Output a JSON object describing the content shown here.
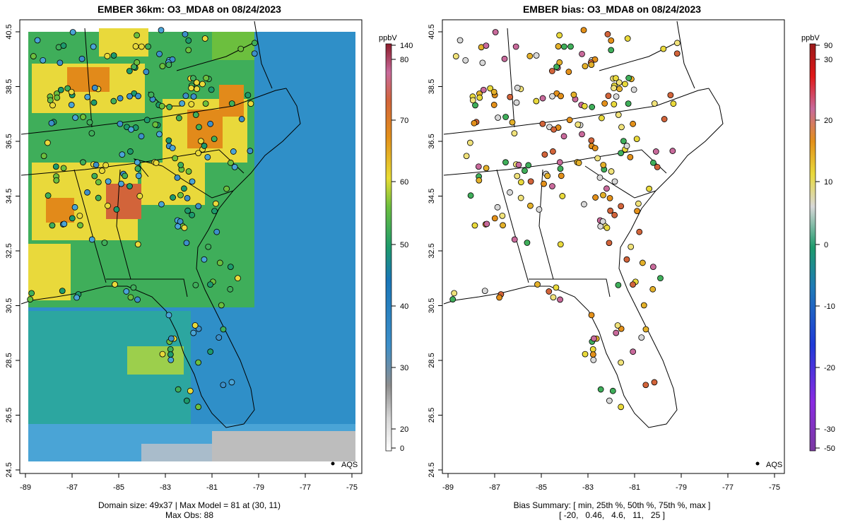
{
  "left_panel": {
    "title": "EMBER 36km: O3_MDA8 on 08/24/2023",
    "footer_line1": "Domain size: 49x37 | Max Model = 81 at (30, 11)",
    "footer_line2": "Max Obs: 88",
    "legend_label": "AQS",
    "colorbar": {
      "unit": "ppbV",
      "ticks": [
        {
          "label": "140",
          "value": 140
        },
        {
          "label": "80",
          "value": 80
        },
        {
          "label": "70",
          "value": 70
        },
        {
          "label": "60",
          "value": 60
        },
        {
          "label": "50",
          "value": 50
        },
        {
          "label": "40",
          "value": 40
        },
        {
          "label": "30",
          "value": 30
        },
        {
          "label": "20",
          "value": 20
        },
        {
          "label": "0",
          "value": 0
        }
      ]
    }
  },
  "right_panel": {
    "title": "EMBER bias: O3_MDA8 on 08/24/2023",
    "footer_line1": "Bias Summary: [ min, 25th %, 50th %, 75th %, max ]",
    "footer_line2": "[ -20,   0.46,   4.6,   11,   25 ]",
    "legend_label": "AQS",
    "colorbar": {
      "unit": "ppbV",
      "ticks": [
        {
          "label": "90",
          "value": 90
        },
        {
          "label": "30",
          "value": 30
        },
        {
          "label": "20",
          "value": 20
        },
        {
          "label": "10",
          "value": 10
        },
        {
          "label": "0",
          "value": 0
        },
        {
          "label": "-10",
          "value": -10
        },
        {
          "label": "-20",
          "value": -20
        },
        {
          "label": "-30",
          "value": -30
        },
        {
          "label": "-50",
          "value": -50
        }
      ]
    }
  },
  "axes": {
    "x_ticks": [
      "-89",
      "-87",
      "-85",
      "-83",
      "-81",
      "-79",
      "-77",
      "-75"
    ],
    "y_ticks": [
      "40.5",
      "38.5",
      "36.5",
      "34.5",
      "32.5",
      "30.5",
      "28.5",
      "26.5",
      "24.5"
    ]
  },
  "colors": {
    "ocean": "#2f8fc8",
    "model_green": "#3fae5a",
    "model_yellow": "#e9d93b",
    "model_orange": "#e28a1a",
    "model_gray": "#bdbdbd"
  }
}
